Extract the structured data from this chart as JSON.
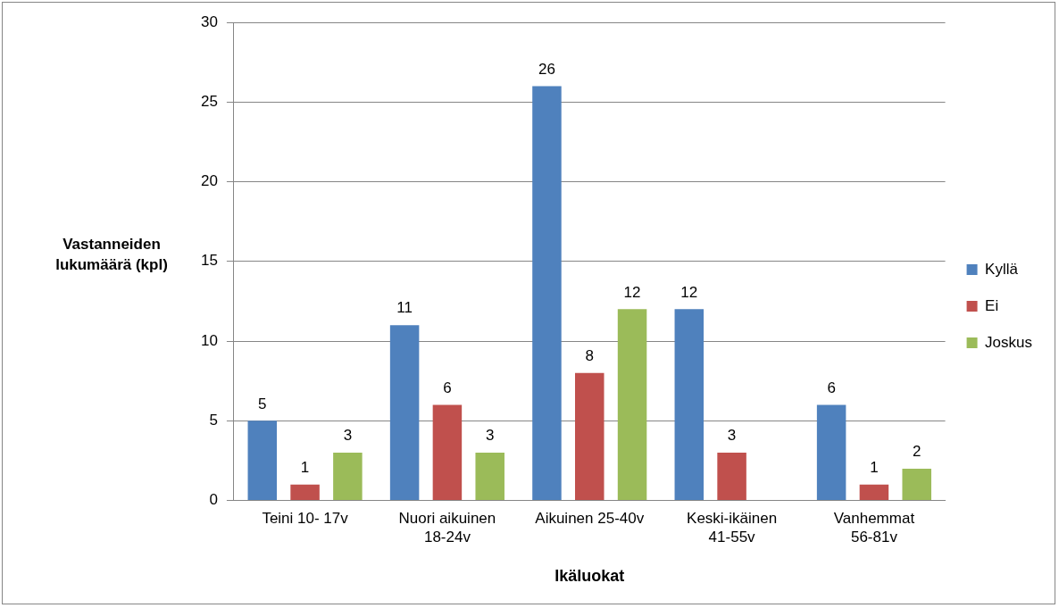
{
  "chart_data": {
    "type": "bar",
    "xlabel": "Ikäluokat",
    "ylabel": "Vastanneiden lukumäärä (kpl)",
    "categories": [
      "Teini 10- 17v",
      "Nuori aikuinen 18-24v",
      "Aikuinen 25-40v",
      "Keski-ikäinen 41-55v",
      "Vanhemmat 56-81v"
    ],
    "series": [
      {
        "name": "Kyllä",
        "color": "#4f81bd",
        "values": [
          5,
          11,
          26,
          12,
          6
        ]
      },
      {
        "name": "Ei",
        "color": "#c0504d",
        "values": [
          1,
          6,
          8,
          3,
          1
        ]
      },
      {
        "name": "Joskus",
        "color": "#9bbb59",
        "values": [
          3,
          3,
          12,
          null,
          2
        ]
      }
    ],
    "ylim": [
      0,
      30
    ],
    "yticks": [
      0,
      5,
      10,
      15,
      20,
      25,
      30
    ],
    "grid": "y",
    "legend": "right",
    "data_labels": true
  }
}
